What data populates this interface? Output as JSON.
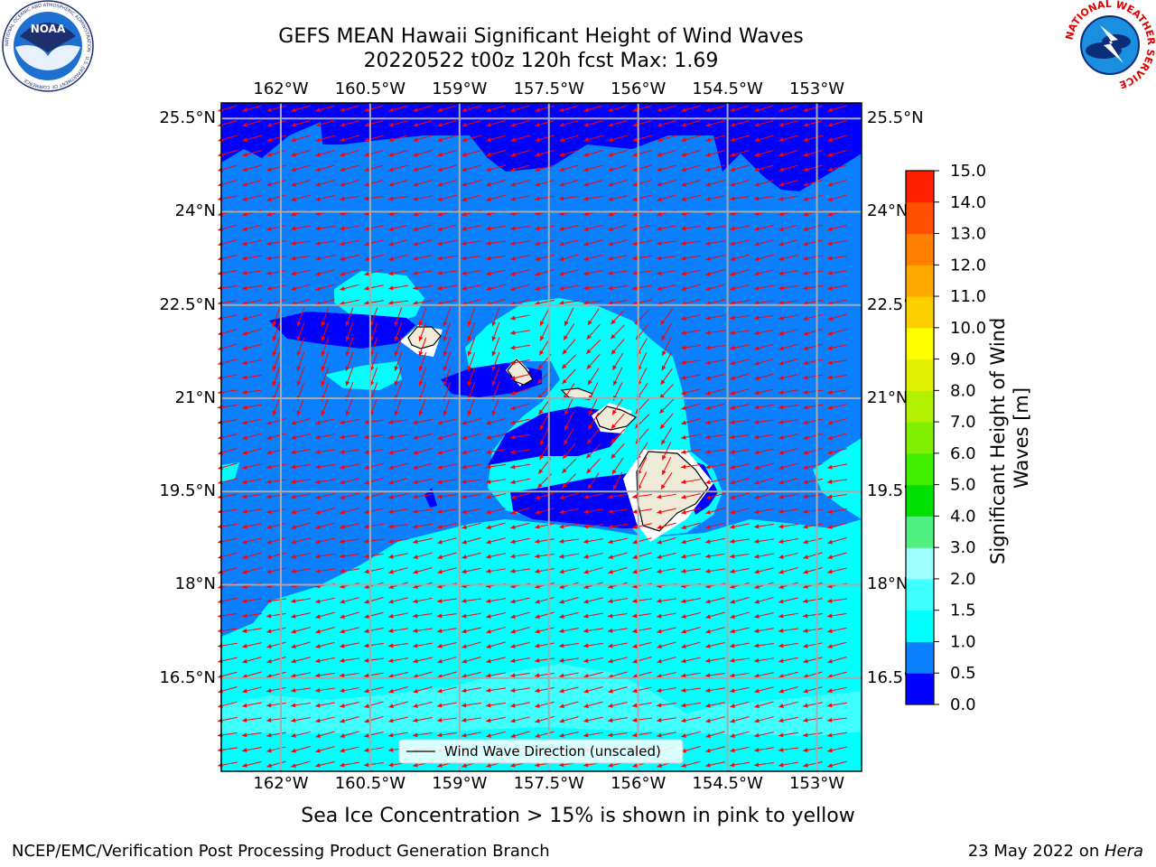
{
  "header": {
    "title_line1": "GEFS MEAN Hawaii Significant Height of Wind Waves",
    "title_line2": "20220522 t00z 120h fcst   Max: 1.69",
    "noaa_logo_text": "NOAA",
    "noaa_ring_text": "NATIONAL OCEANIC AND ATMOSPHERIC ADMINISTRATION · U.S. DEPARTMENT OF COMMERCE",
    "nws_ring_text": "NATIONAL WEATHER SERVICE"
  },
  "map": {
    "lon_ticks": [
      "162°W",
      "160.5°W",
      "159°W",
      "157.5°W",
      "156°W",
      "154.5°W",
      "153°W"
    ],
    "lon_values": [
      -162,
      -160.5,
      -159,
      -157.5,
      -156,
      -154.5,
      -153
    ],
    "lat_ticks": [
      "25.5°N",
      "24°N",
      "22.5°N",
      "21°N",
      "19.5°N",
      "18°N",
      "16.5°N"
    ],
    "lat_values": [
      25.5,
      24,
      22.5,
      21,
      19.5,
      18,
      16.5
    ],
    "extent": {
      "lon_min": -163,
      "lon_max": -152.25,
      "lat_min": 15.0,
      "lat_max": 25.75
    },
    "legend_label": "Wind Wave Direction (unscaled)",
    "wave_direction_color": "#ff0000",
    "land_color": "#efebd8"
  },
  "colorbar": {
    "label": "Significant Height of Wind Waves [m]",
    "ticks": [
      "0.0",
      "0.5",
      "1.0",
      "1.5",
      "2.0",
      "3.0",
      "4.0",
      "5.0",
      "6.0",
      "7.0",
      "8.0",
      "9.0",
      "10.0",
      "11.0",
      "12.0",
      "13.0",
      "14.0",
      "15.0"
    ],
    "colors": [
      "#0000ff",
      "#0a80ff",
      "#00ffff",
      "#40ffff",
      "#a0ffff",
      "#50f080",
      "#00e000",
      "#40ee00",
      "#80f000",
      "#b0f000",
      "#e0f000",
      "#ffff00",
      "#ffd000",
      "#ffa800",
      "#ff8000",
      "#ff5000",
      "#ff2000"
    ]
  },
  "caption": "Sea Ice Concentration > 15% is shown in pink to yellow",
  "footer": {
    "left": "NCEP/EMC/Verification Post Processing Product Generation Branch",
    "right_date": "23 May 2022 on ",
    "right_host": "Hera"
  }
}
